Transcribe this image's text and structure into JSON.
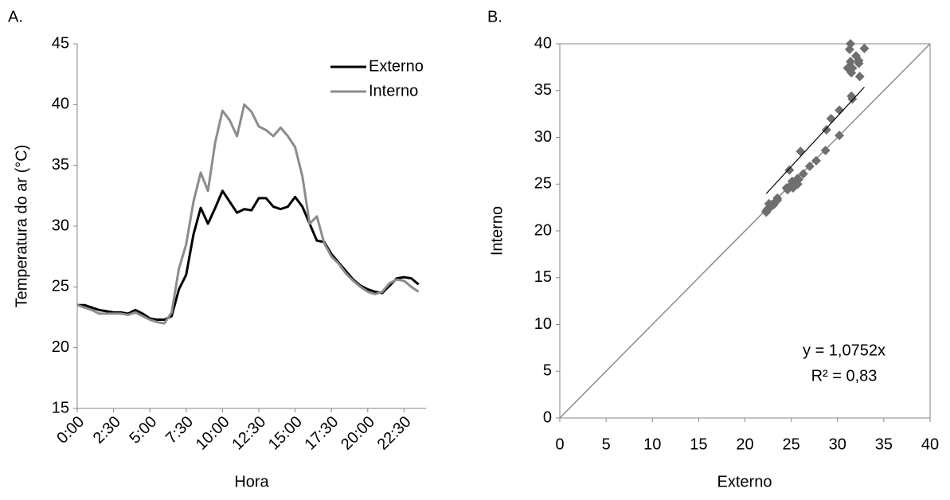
{
  "chart_data": [
    {
      "type": "line",
      "panel": "A.",
      "xlabel": "Hora",
      "ylabel": "Temperatura do ar (°C)",
      "categories": [
        "0:00",
        null,
        null,
        null,
        null,
        "2:30",
        null,
        null,
        null,
        null,
        "5:00",
        null,
        null,
        null,
        null,
        "7:30",
        null,
        null,
        null,
        null,
        "10:00",
        null,
        null,
        null,
        null,
        "12:30",
        null,
        null,
        null,
        null,
        "15:00",
        null,
        null,
        null,
        null,
        "17:30",
        null,
        null,
        null,
        null,
        "20:00",
        null,
        null,
        null,
        null,
        "22:30",
        null,
        null
      ],
      "series": [
        {
          "name": "Externo",
          "color": "#000000",
          "values": [
            23.5,
            23.5,
            23.3,
            23.1,
            23.0,
            22.9,
            22.9,
            22.8,
            23.1,
            22.8,
            22.4,
            22.3,
            22.3,
            22.6,
            24.8,
            26.0,
            29.3,
            31.5,
            30.2,
            31.5,
            32.9,
            32.0,
            31.1,
            31.4,
            31.3,
            32.3,
            32.3,
            31.6,
            31.4,
            31.6,
            32.4,
            31.6,
            30.2,
            28.8,
            28.7,
            27.7,
            27.0,
            26.3,
            25.6,
            25.1,
            24.8,
            24.6,
            24.5,
            25.1,
            25.7,
            25.8,
            25.7,
            25.2
          ]
        },
        {
          "name": "Interno",
          "color": "#8c8c8c",
          "values": [
            23.5,
            23.3,
            23.1,
            22.8,
            22.8,
            22.8,
            22.8,
            22.7,
            22.9,
            22.6,
            22.3,
            22.1,
            22.0,
            22.9,
            26.5,
            28.5,
            32.0,
            34.4,
            32.9,
            36.9,
            39.5,
            38.7,
            37.4,
            40.0,
            39.4,
            38.2,
            37.9,
            37.4,
            38.1,
            37.4,
            36.5,
            34.1,
            30.2,
            30.8,
            28.6,
            27.5,
            26.9,
            26.1,
            25.5,
            25.0,
            24.6,
            24.4,
            24.6,
            25.3,
            25.6,
            25.5,
            25.0,
            24.6
          ]
        }
      ],
      "ylim": [
        15,
        45
      ],
      "yticks": [
        15,
        20,
        25,
        30,
        35,
        40,
        45
      ],
      "legend": "upper right"
    },
    {
      "type": "scatter",
      "panel": "B.",
      "xlabel": "Externo",
      "ylabel": "Interno",
      "color": "#6f6f6f",
      "x": [
        23.5,
        23.5,
        23.3,
        23.1,
        23.0,
        22.9,
        22.9,
        22.8,
        23.1,
        22.8,
        22.4,
        22.3,
        22.3,
        22.6,
        24.8,
        26.0,
        29.3,
        31.5,
        30.2,
        31.5,
        32.9,
        32.0,
        31.1,
        31.4,
        31.3,
        32.3,
        32.3,
        31.6,
        31.4,
        31.6,
        32.4,
        31.6,
        30.2,
        28.8,
        28.7,
        27.7,
        27.0,
        26.3,
        25.6,
        25.1,
        24.8,
        24.6,
        24.5,
        25.1,
        25.7,
        25.8,
        25.7,
        25.2
      ],
      "values": [
        23.5,
        23.3,
        23.1,
        22.8,
        22.8,
        22.8,
        22.8,
        22.7,
        22.9,
        22.6,
        22.3,
        22.1,
        22.0,
        22.9,
        26.5,
        28.5,
        32.0,
        34.4,
        32.9,
        36.9,
        39.5,
        38.7,
        37.4,
        40.0,
        39.4,
        38.2,
        37.9,
        37.4,
        38.1,
        37.4,
        36.5,
        34.1,
        30.2,
        30.8,
        28.6,
        27.5,
        26.9,
        26.1,
        25.5,
        25.0,
        24.6,
        24.4,
        24.6,
        25.3,
        25.6,
        25.5,
        25.0,
        24.6
      ],
      "xlim": [
        0,
        40
      ],
      "ylim": [
        0,
        40
      ],
      "xticks": [
        0,
        5,
        10,
        15,
        20,
        25,
        30,
        35,
        40
      ],
      "yticks": [
        0,
        5,
        10,
        15,
        20,
        25,
        30,
        35,
        40
      ],
      "identity_line": true,
      "trendline": {
        "slope": 1.0752,
        "label": "y = 1,0752x",
        "r2": 0.83,
        "r2_label": "R² = 0,83"
      }
    }
  ]
}
